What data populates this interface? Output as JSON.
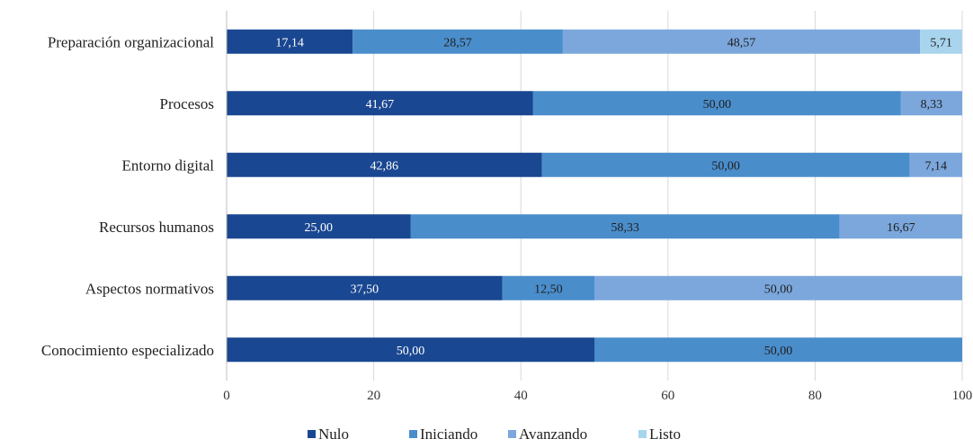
{
  "chart_data": {
    "type": "bar",
    "orientation": "horizontal",
    "stacked": true,
    "title": "",
    "xlabel": "",
    "ylabel": "",
    "xlim": [
      0,
      100
    ],
    "xticks": [
      0,
      20,
      40,
      60,
      80,
      100
    ],
    "grid": "vertical",
    "legend_position": "bottom",
    "categories": [
      "Preparación organizacional",
      "Procesos",
      "Entorno digital",
      "Recursos humanos",
      "Aspectos normativos",
      "Conocimiento especializado"
    ],
    "series": [
      {
        "name": "Nulo",
        "color": "#1A4791",
        "label_color": "#ffffff",
        "values": [
          17.14,
          41.67,
          42.86,
          25.0,
          37.5,
          50.0
        ],
        "labels": [
          "17,14",
          "41,67",
          "42,86",
          "25,00",
          "37,50",
          "50,00"
        ]
      },
      {
        "name": "Iniciando",
        "color": "#4A8DCB",
        "label_color": "#1f1f1f",
        "values": [
          28.57,
          50.0,
          50.0,
          58.33,
          12.5,
          50.0
        ],
        "labels": [
          "28,57",
          "50,00",
          "50,00",
          "58,33",
          "12,50",
          "50,00"
        ]
      },
      {
        "name": "Avanzando",
        "color": "#7BA7DC",
        "label_color": "#1f1f1f",
        "values": [
          48.57,
          8.33,
          7.14,
          16.67,
          50.0,
          0
        ],
        "labels": [
          "48,57",
          "8,33",
          "7,14",
          "16,67",
          "50,00",
          ""
        ]
      },
      {
        "name": "Listo",
        "color": "#A8D4EE",
        "label_color": "#1f1f1f",
        "values": [
          5.71,
          0,
          0,
          0,
          0,
          0
        ],
        "labels": [
          "5,71",
          "",
          "",
          "",
          "",
          ""
        ]
      }
    ]
  }
}
